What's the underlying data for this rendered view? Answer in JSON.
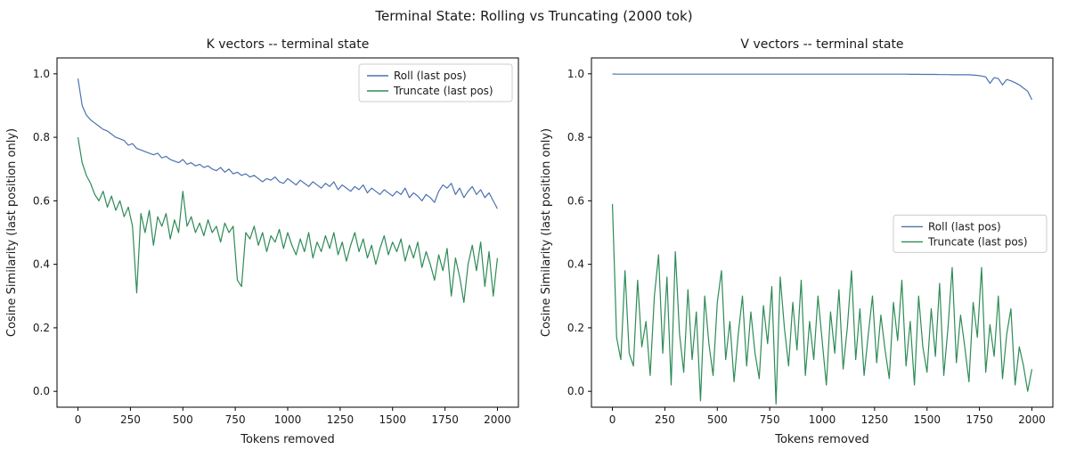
{
  "figure": {
    "title": "Terminal State: Rolling vs Truncating (2000 tok)",
    "background": "#ffffff",
    "spine_color": "#000000",
    "legend_border_color": "#cccccc"
  },
  "chart_data": [
    {
      "type": "line",
      "title": "K vectors -- terminal state",
      "xlabel": "Tokens removed",
      "ylabel": "Cosine Similarity (last position only)",
      "xlim": [
        -100,
        2100
      ],
      "ylim": [
        -0.05,
        1.05
      ],
      "xticks": [
        0,
        250,
        500,
        750,
        1000,
        1250,
        1500,
        1750,
        2000
      ],
      "yticks": [
        0.0,
        0.2,
        0.4,
        0.6,
        0.8,
        1.0
      ],
      "grid": false,
      "legend_position": "upper-right",
      "x_start": 0,
      "x_step": 20,
      "series": [
        {
          "name": "Roll (last pos)",
          "color": "#4c72b0",
          "values": [
            0.985,
            0.9,
            0.87,
            0.855,
            0.845,
            0.835,
            0.825,
            0.82,
            0.81,
            0.8,
            0.795,
            0.79,
            0.775,
            0.78,
            0.765,
            0.76,
            0.755,
            0.75,
            0.745,
            0.75,
            0.735,
            0.74,
            0.73,
            0.725,
            0.72,
            0.73,
            0.715,
            0.72,
            0.71,
            0.715,
            0.705,
            0.71,
            0.7,
            0.695,
            0.705,
            0.69,
            0.7,
            0.685,
            0.69,
            0.68,
            0.685,
            0.675,
            0.68,
            0.67,
            0.66,
            0.67,
            0.665,
            0.675,
            0.66,
            0.655,
            0.67,
            0.66,
            0.65,
            0.665,
            0.655,
            0.645,
            0.66,
            0.65,
            0.64,
            0.655,
            0.645,
            0.66,
            0.635,
            0.65,
            0.64,
            0.63,
            0.645,
            0.635,
            0.65,
            0.625,
            0.64,
            0.63,
            0.62,
            0.635,
            0.625,
            0.615,
            0.63,
            0.62,
            0.64,
            0.61,
            0.625,
            0.615,
            0.6,
            0.62,
            0.61,
            0.595,
            0.63,
            0.65,
            0.64,
            0.655,
            0.62,
            0.64,
            0.61,
            0.63,
            0.645,
            0.62,
            0.635,
            0.61,
            0.625,
            0.6,
            0.575
          ]
        },
        {
          "name": "Truncate (last pos)",
          "color": "#2e8b57",
          "values": [
            0.8,
            0.72,
            0.68,
            0.655,
            0.62,
            0.6,
            0.63,
            0.58,
            0.615,
            0.57,
            0.6,
            0.55,
            0.58,
            0.52,
            0.31,
            0.56,
            0.5,
            0.57,
            0.46,
            0.55,
            0.52,
            0.56,
            0.48,
            0.54,
            0.5,
            0.63,
            0.52,
            0.55,
            0.5,
            0.53,
            0.49,
            0.54,
            0.5,
            0.52,
            0.47,
            0.53,
            0.5,
            0.52,
            0.35,
            0.33,
            0.5,
            0.48,
            0.52,
            0.46,
            0.5,
            0.44,
            0.49,
            0.47,
            0.51,
            0.45,
            0.5,
            0.46,
            0.43,
            0.48,
            0.44,
            0.5,
            0.42,
            0.47,
            0.44,
            0.49,
            0.45,
            0.5,
            0.43,
            0.47,
            0.41,
            0.46,
            0.5,
            0.44,
            0.48,
            0.42,
            0.46,
            0.4,
            0.45,
            0.49,
            0.43,
            0.47,
            0.44,
            0.48,
            0.41,
            0.46,
            0.42,
            0.47,
            0.39,
            0.44,
            0.4,
            0.35,
            0.43,
            0.38,
            0.45,
            0.3,
            0.42,
            0.36,
            0.28,
            0.4,
            0.46,
            0.38,
            0.47,
            0.33,
            0.44,
            0.3,
            0.42
          ]
        }
      ]
    },
    {
      "type": "line",
      "title": "V vectors -- terminal state",
      "xlabel": "Tokens removed",
      "ylabel": "Cosine Similarity (last position only)",
      "xlim": [
        -100,
        2100
      ],
      "ylim": [
        -0.05,
        1.05
      ],
      "xticks": [
        0,
        250,
        500,
        750,
        1000,
        1250,
        1500,
        1750,
        2000
      ],
      "yticks": [
        0.0,
        0.2,
        0.4,
        0.6,
        0.8,
        1.0
      ],
      "grid": false,
      "legend_position": "center-right",
      "x_start": 0,
      "x_step": 20,
      "series": [
        {
          "name": "Roll (last pos)",
          "color": "#4c72b0",
          "values": [
            0.9995,
            0.999,
            0.999,
            0.999,
            0.999,
            0.999,
            0.999,
            0.999,
            0.999,
            0.999,
            0.999,
            0.999,
            0.999,
            0.999,
            0.999,
            0.999,
            0.999,
            0.999,
            0.999,
            0.999,
            0.999,
            0.999,
            0.999,
            0.999,
            0.999,
            0.999,
            0.999,
            0.999,
            0.999,
            0.999,
            0.999,
            0.999,
            0.999,
            0.999,
            0.999,
            0.999,
            0.999,
            0.999,
            0.999,
            0.999,
            0.999,
            0.999,
            0.999,
            0.999,
            0.999,
            0.999,
            0.999,
            0.999,
            0.999,
            0.999,
            0.999,
            0.999,
            0.999,
            0.999,
            0.999,
            0.999,
            0.999,
            0.999,
            0.999,
            0.999,
            0.999,
            0.999,
            0.999,
            0.999,
            0.999,
            0.999,
            0.999,
            0.999,
            0.999,
            0.999,
            0.999,
            0.9985,
            0.9985,
            0.9985,
            0.998,
            0.998,
            0.998,
            0.998,
            0.9975,
            0.9975,
            0.9975,
            0.997,
            0.997,
            0.997,
            0.997,
            0.997,
            0.996,
            0.995,
            0.993,
            0.99,
            0.97,
            0.988,
            0.985,
            0.965,
            0.982,
            0.978,
            0.972,
            0.965,
            0.955,
            0.945,
            0.918
          ]
        },
        {
          "name": "Truncate (last pos)",
          "color": "#2e8b57",
          "values": [
            0.59,
            0.17,
            0.1,
            0.38,
            0.12,
            0.08,
            0.35,
            0.14,
            0.22,
            0.05,
            0.3,
            0.43,
            0.12,
            0.36,
            0.02,
            0.44,
            0.18,
            0.06,
            0.32,
            0.1,
            0.25,
            -0.03,
            0.3,
            0.15,
            0.05,
            0.28,
            0.38,
            0.1,
            0.22,
            0.03,
            0.18,
            0.3,
            0.08,
            0.25,
            0.12,
            0.04,
            0.27,
            0.15,
            0.33,
            -0.04,
            0.36,
            0.2,
            0.08,
            0.28,
            0.13,
            0.35,
            0.05,
            0.22,
            0.1,
            0.3,
            0.16,
            0.02,
            0.25,
            0.12,
            0.32,
            0.07,
            0.2,
            0.38,
            0.1,
            0.26,
            0.05,
            0.18,
            0.3,
            0.09,
            0.24,
            0.13,
            0.04,
            0.28,
            0.16,
            0.35,
            0.08,
            0.22,
            0.02,
            0.3,
            0.14,
            0.06,
            0.26,
            0.11,
            0.34,
            0.05,
            0.2,
            0.39,
            0.09,
            0.24,
            0.14,
            0.03,
            0.28,
            0.17,
            0.39,
            0.06,
            0.21,
            0.11,
            0.3,
            0.04,
            0.18,
            0.26,
            0.02,
            0.14,
            0.08,
            0.0,
            0.07
          ]
        }
      ]
    }
  ]
}
